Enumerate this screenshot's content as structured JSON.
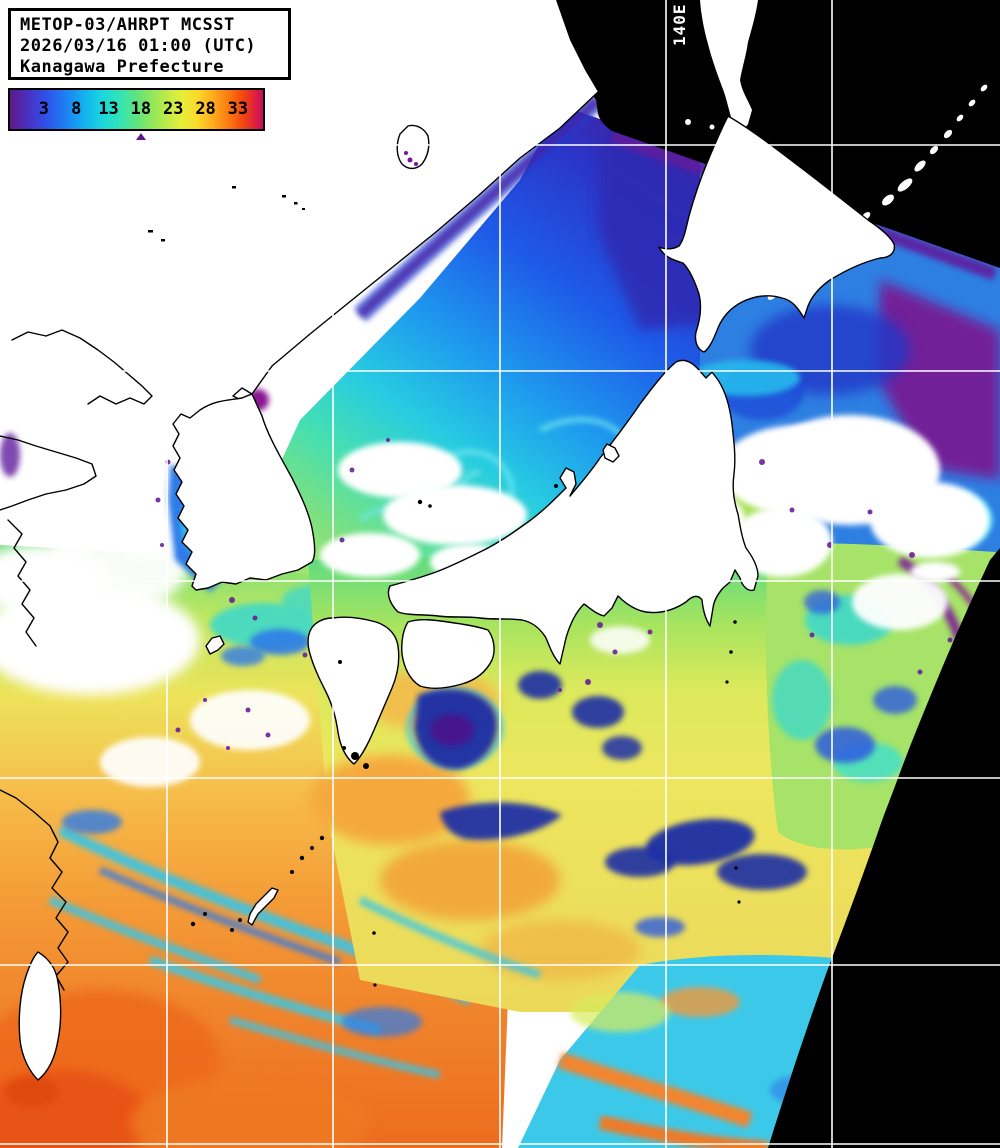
{
  "header": {
    "line1": "METOP-03/AHRPT MCSST",
    "line2": "2026/03/16 01:00 (UTC)",
    "line3": "Kanagawa Prefecture"
  },
  "colorbar": {
    "ticks": [
      "3",
      "8",
      "13",
      "18",
      "23",
      "28",
      "33"
    ],
    "tick_step_c": 5,
    "marker_value": 18,
    "marker_color": "#5B1B86",
    "gradient": [
      "#5E1A86 0%",
      "#4B2FC2 7%",
      "#2C55EC 15%",
      "#1C86F2 23%",
      "#12B6EE 30%",
      "#1CD9DC 37%",
      "#35E4B2 44%",
      "#5FE37F 50%",
      "#8FE75C 56%",
      "#BEEB48 62%",
      "#E7EE39 68%",
      "#FCD92B 74%",
      "#FFAE1C 80%",
      "#FC7D12 86%",
      "#F2480E 92%",
      "#DC1F3E 97%",
      "#C30D5E 100%"
    ]
  },
  "map": {
    "meridian_label": "140E",
    "grid_color": "#FFFFFF",
    "no_data_color": "#000000",
    "land_cloud_color": "#FFFFFF",
    "coastline_color": "#000000",
    "sea_accents": {
      "cold_indigo": "#2B35C8",
      "cold_purple": "#5E1E9E",
      "magenta_patch": "#7A1890",
      "cyan": "#27CBE2",
      "teal_green": "#46DFB2",
      "green": "#7FE07E",
      "yellow": "#EDE65E",
      "orange": "#F49A36",
      "red_orange": "#E85313",
      "cloud_blob_blue": "#1C2FA6",
      "blob_core_purple": "#44128E"
    }
  }
}
